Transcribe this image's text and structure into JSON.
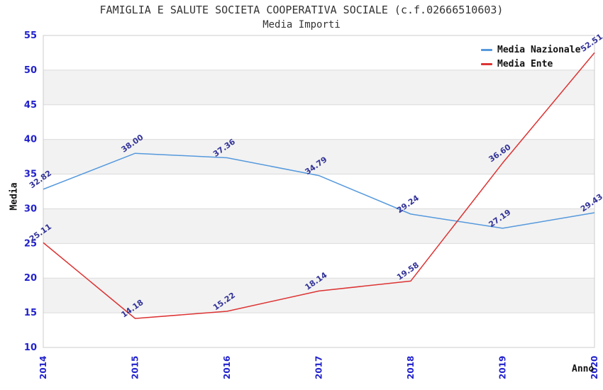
{
  "chart_data": {
    "type": "line",
    "title": "FAMIGLIA E SALUTE SOCIETA COOPERATIVA SOCIALE (c.f.02666510603)",
    "subtitle": "Media Importi",
    "xlabel": "Anno",
    "ylabel": "Media",
    "categories": [
      "2014",
      "2015",
      "2016",
      "2017",
      "2018",
      "2019",
      "2020"
    ],
    "series": [
      {
        "name": "Media Nazionale",
        "color": "#5599DD",
        "values": [
          32.82,
          38.0,
          37.36,
          34.79,
          29.24,
          27.19,
          29.43
        ]
      },
      {
        "name": "Media Ente",
        "color": "#DD3333",
        "values": [
          25.11,
          14.18,
          15.22,
          18.14,
          19.58,
          36.6,
          52.51
        ]
      }
    ],
    "ylim": [
      10,
      55
    ],
    "ytick_step": 5,
    "grid": true,
    "legend_position": "top-right",
    "label_decimals": 2,
    "styles": {
      "tick_color": "#2222CC",
      "point_label_color": "#333399",
      "band_color": "#F2F2F2",
      "grid_color": "#DBDBDB",
      "border_color": "#CCCCCC",
      "title_color": "#333333",
      "background": "#FFFFFF"
    }
  }
}
